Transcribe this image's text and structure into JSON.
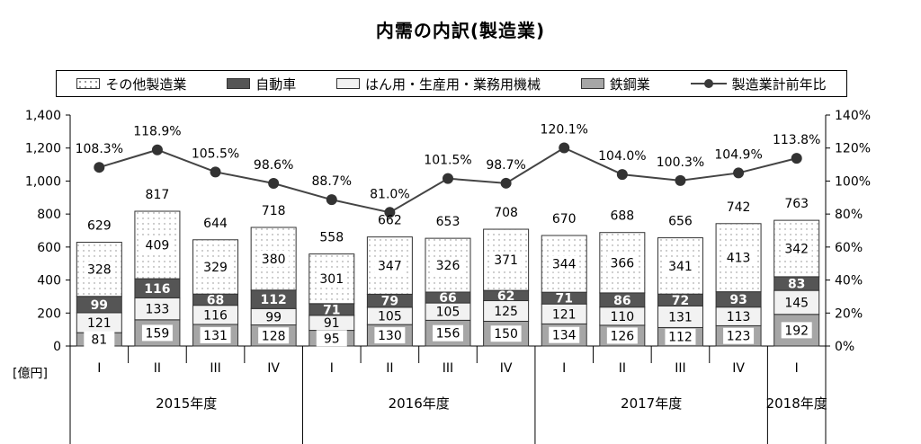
{
  "title": "内需の内訳(製造業)",
  "legend": {
    "other": "その他製造業",
    "auto": "自動車",
    "machinery": "はん用・生産用・業務用機械",
    "steel": "鉄鋼業",
    "ratio": "製造業計前年比"
  },
  "chart_data": {
    "type": "bar",
    "stacked": true,
    "title": "内需の内訳(製造業)",
    "unit_label": "[億円]",
    "categories": [
      "I",
      "II",
      "III",
      "IV",
      "I",
      "II",
      "III",
      "IV",
      "I",
      "II",
      "III",
      "IV",
      "I"
    ],
    "years": [
      {
        "label": "2015年度",
        "span": 4
      },
      {
        "label": "2016年度",
        "span": 4
      },
      {
        "label": "2017年度",
        "span": 4
      },
      {
        "label": "2018年度",
        "span": 1
      }
    ],
    "series": [
      {
        "name": "鉄鋼業",
        "color": "#a6a6a6",
        "values": [
          81,
          159,
          131,
          128,
          95,
          130,
          156,
          150,
          134,
          126,
          112,
          123,
          192
        ]
      },
      {
        "name": "はん用・生産用・業務用機械",
        "color": "#f2f2f2",
        "values": [
          121,
          133,
          116,
          99,
          91,
          105,
          105,
          125,
          121,
          110,
          131,
          113,
          145
        ]
      },
      {
        "name": "自動車",
        "color": "#555555",
        "values": [
          99,
          116,
          68,
          112,
          71,
          79,
          66,
          62,
          71,
          86,
          72,
          93,
          83
        ]
      },
      {
        "name": "その他製造業",
        "color": "#ffffff",
        "values": [
          328,
          409,
          329,
          380,
          301,
          347,
          326,
          371,
          344,
          366,
          341,
          413,
          342
        ]
      }
    ],
    "totals": [
      629,
      817,
      644,
      718,
      558,
      662,
      653,
      708,
      670,
      688,
      656,
      742,
      763
    ],
    "line": {
      "name": "製造業計前年比",
      "values": [
        108.3,
        118.9,
        105.5,
        98.6,
        88.7,
        81.0,
        101.5,
        98.7,
        120.1,
        104.0,
        100.3,
        104.9,
        113.8
      ],
      "labels": [
        "108.3%",
        "118.9%",
        "105.5%",
        "98.6%",
        "88.7%",
        "81.0%",
        "101.5%",
        "98.7%",
        "120.1%",
        "104.0%",
        "100.3%",
        "104.9%",
        "113.8%"
      ]
    },
    "y_left": {
      "min": 0,
      "max": 1400,
      "step": 200,
      "ticks": [
        "0",
        "200",
        "400",
        "600",
        "800",
        "1,000",
        "1,200",
        "1,400"
      ]
    },
    "y_right": {
      "min": 0,
      "max": 140,
      "step": 20,
      "ticks": [
        "0%",
        "20%",
        "40%",
        "60%",
        "80%",
        "100%",
        "120%",
        "140%"
      ]
    },
    "grid": false,
    "legend_position": "top"
  }
}
